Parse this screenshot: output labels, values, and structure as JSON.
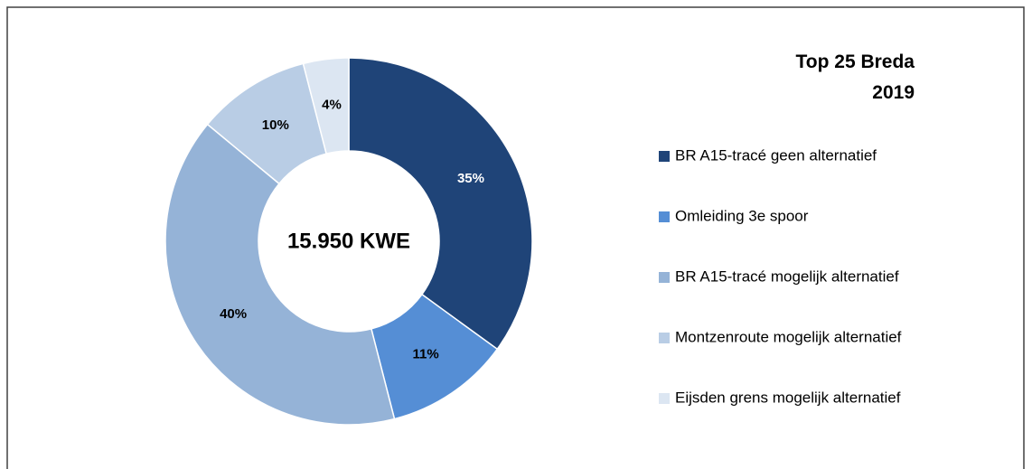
{
  "chart_data": {
    "type": "donut",
    "title": "Top 25 Breda 2019",
    "center_label": "15.950 KWE",
    "categories": [
      "BR A15-tracé geen alternatief",
      "Omleiding 3e spoor",
      "BR A15-tracé mogelijk alternatief",
      "Montzenroute mogelijk alternatief",
      "Eijsden grens mogelijk alternatief"
    ],
    "values": [
      35,
      11,
      40,
      10,
      4
    ],
    "value_labels": [
      "35%",
      "11%",
      "40%",
      "10%",
      "4%"
    ],
    "colors": [
      "#1f4478",
      "#558ed5",
      "#95b3d7",
      "#b9cde5",
      "#dce6f2"
    ],
    "legend": "right"
  }
}
